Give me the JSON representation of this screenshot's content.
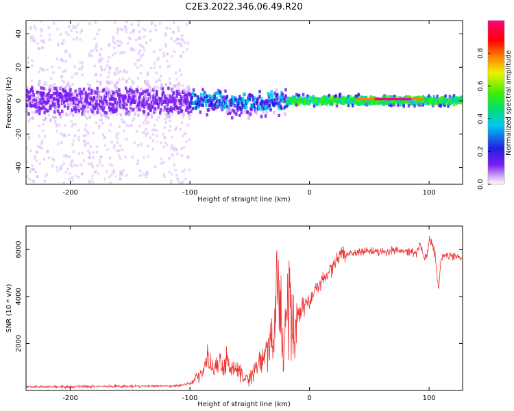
{
  "figure": {
    "title": "C2E3.2022.346.06.49.R20"
  },
  "chart_data": [
    {
      "type": "heatmap",
      "name": "spectrogram",
      "xlabel": "Height of straight line (km)",
      "ylabel": "Frequency (Hz)",
      "xlim": [
        -237,
        128
      ],
      "ylim": [
        -50,
        48
      ],
      "xticks": [
        -200,
        -100,
        0,
        100
      ],
      "yticks": [
        -40,
        -20,
        0,
        20,
        40
      ],
      "xtick_labels": [
        "-200",
        "-100",
        "0",
        "100"
      ],
      "ytick_labels": [
        "-40",
        "-20",
        "0",
        "20",
        "40"
      ],
      "colorbar": {
        "label": "Normalized spectral amplitude",
        "range": [
          0,
          1
        ],
        "ticks": [
          0.0,
          0.2,
          0.4,
          0.6,
          0.8
        ],
        "tick_labels": [
          "0.0",
          "0.2",
          "0.4",
          "0.6",
          "0.8"
        ],
        "colormap": [
          "#ffffff",
          "#d8b8f8",
          "#7a1cf0",
          "#2020e0",
          "#00c8f0",
          "#00e070",
          "#40f000",
          "#f0f000",
          "#ff8000",
          "#ff0000",
          "#ff0080"
        ]
      },
      "features": [
        {
          "desc": "scattered noise",
          "x_range": [
            -237,
            -100
          ],
          "f_range": [
            -50,
            48
          ],
          "level": 0.1
        },
        {
          "desc": "main signal band",
          "x_range": [
            -237,
            128
          ],
          "f_center": 0,
          "level": 0.6
        },
        {
          "desc": "high amplitude core",
          "x_range": [
            40,
            95
          ],
          "f_center": 1,
          "level": 0.95
        }
      ]
    },
    {
      "type": "line",
      "name": "snr",
      "xlabel": "Height of straight line (km)",
      "ylabel": "SNR (10 * v/v)",
      "xlim": [
        -237,
        128
      ],
      "ylim": [
        0,
        7000
      ],
      "xticks": [
        -200,
        -100,
        0,
        100
      ],
      "yticks": [
        2000,
        4000,
        6000
      ],
      "xtick_labels": [
        "-200",
        "-100",
        "0",
        "100"
      ],
      "ytick_labels": [
        "2000",
        "4000",
        "6000"
      ],
      "color": "#ee3333",
      "series": [
        {
          "name": "SNR",
          "x": [
            -237,
            -200,
            -150,
            -110,
            -100,
            -90,
            -85,
            -80,
            -75,
            -70,
            -65,
            -60,
            -55,
            -50,
            -45,
            -40,
            -35,
            -30,
            -27,
            -25,
            -22,
            -20,
            -18,
            -15,
            -13,
            -12,
            -10,
            -8,
            -5,
            0,
            5,
            10,
            15,
            20,
            25,
            30,
            40,
            50,
            60,
            70,
            80,
            90,
            93,
            95,
            98,
            100,
            102,
            105,
            108,
            110,
            115,
            120,
            128
          ],
          "y": [
            150,
            160,
            180,
            200,
            300,
            700,
            1300,
            900,
            1100,
            1200,
            1000,
            1000,
            400,
            500,
            900,
            1200,
            1800,
            2300,
            4000,
            3500,
            2200,
            2600,
            3500,
            2800,
            2200,
            1800,
            3200,
            3400,
            3600,
            3800,
            4300,
            4600,
            5000,
            5400,
            5700,
            5800,
            5900,
            5950,
            5900,
            5950,
            5900,
            5900,
            6300,
            5700,
            5600,
            6400,
            6300,
            5800,
            4300,
            5700,
            5800,
            5700,
            5650
          ]
        }
      ]
    }
  ]
}
